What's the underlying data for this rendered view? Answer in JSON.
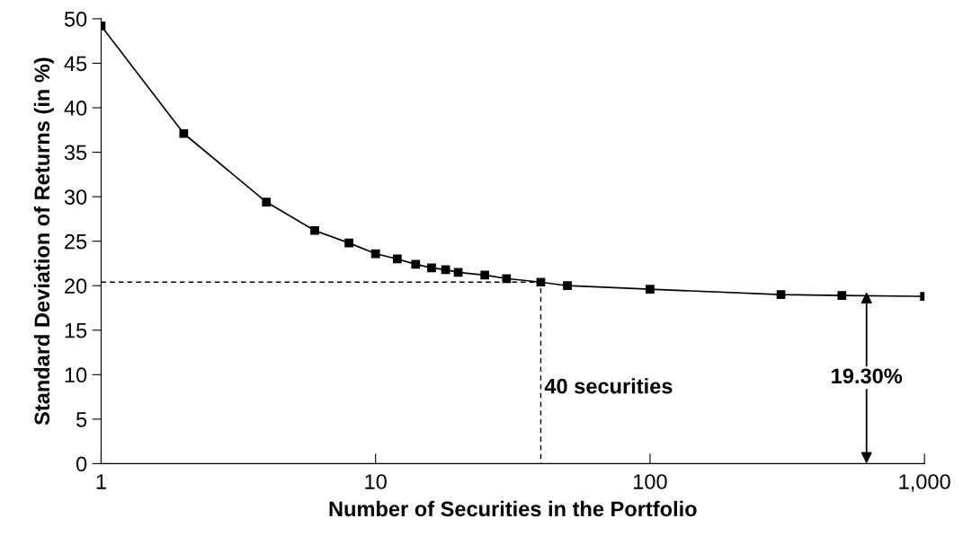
{
  "chart_data": {
    "type": "line",
    "xlabel": "Number of Securities in the Portfolio",
    "ylabel": "Standard Deviation of Returns (in %)",
    "log": "x",
    "xlim": [
      1,
      1000
    ],
    "xticks": [
      1,
      10,
      100,
      {
        "value": 1000,
        "label": "1,000"
      }
    ],
    "ylim": [
      0,
      50
    ],
    "yticks": [
      0,
      5,
      10,
      15,
      20,
      25,
      30,
      35,
      40,
      45,
      50
    ],
    "grid": false,
    "series": [
      {
        "color": "#000000",
        "marker": "square",
        "line_style": "solid",
        "x": [
          1,
          2,
          4,
          6,
          8,
          10,
          12,
          14,
          16,
          18,
          20,
          25,
          30,
          40,
          50,
          100,
          300,
          500,
          1000
        ],
        "values": [
          49.2,
          37.1,
          29.4,
          26.2,
          24.8,
          23.6,
          23.0,
          22.4,
          22.0,
          21.8,
          21.5,
          21.2,
          20.8,
          20.4,
          20.0,
          19.6,
          19.0,
          18.9,
          18.8
        ]
      },
      {
        "color": "#000000",
        "marker": "none",
        "line_style": "dashed",
        "x": [
          1,
          40,
          40
        ],
        "values": [
          20.4,
          20.4,
          0
        ]
      }
    ],
    "annotations": [
      {
        "text": "40 securities",
        "x": 40,
        "y": 8.5
      },
      {
        "text": "19.30%",
        "x": 615,
        "y": 19.3
      }
    ]
  }
}
